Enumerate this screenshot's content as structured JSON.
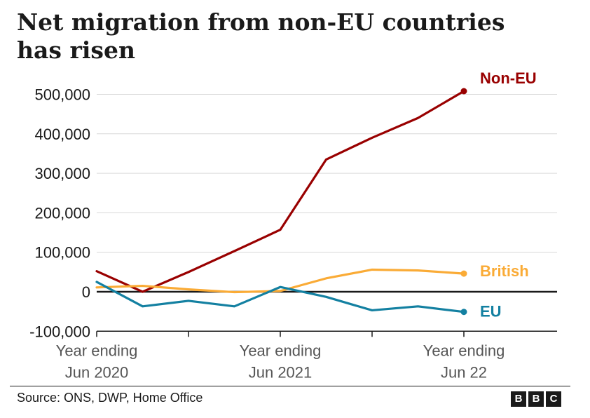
{
  "title": "Net migration from non-EU countries has risen",
  "source": "Source: ONS, DWP, Home Office",
  "logo": [
    "B",
    "B",
    "C"
  ],
  "chart_data": {
    "type": "line",
    "title": "Net migration from non-EU countries has risen",
    "ylim": [
      -100000,
      520000
    ],
    "yticks": [
      {
        "value": -100000,
        "label": "-100,000"
      },
      {
        "value": 0,
        "label": "0"
      },
      {
        "value": 100000,
        "label": "100,000"
      },
      {
        "value": 200000,
        "label": "200,000"
      },
      {
        "value": 300000,
        "label": "300,000"
      },
      {
        "value": 400000,
        "label": "400,000"
      },
      {
        "value": 500000,
        "label": "500,000"
      }
    ],
    "x": [
      0,
      1,
      2,
      3,
      4,
      5,
      6,
      7,
      8
    ],
    "xlim": [
      0,
      10
    ],
    "xticks": [
      {
        "value": 0,
        "line1": "Year ending",
        "line2": "Jun 2020"
      },
      {
        "value": 4,
        "line1": "Year ending",
        "line2": "Jun 2021"
      },
      {
        "value": 8,
        "line1": "Year ending",
        "line2": "Jun 22"
      }
    ],
    "xtick_marks": [
      0,
      2,
      4,
      6,
      8
    ],
    "grid": true,
    "series": [
      {
        "name": "Non-EU",
        "color": "#990000",
        "values": [
          52000,
          0,
          50000,
          103000,
          157000,
          335000,
          390000,
          440000,
          508000
        ]
      },
      {
        "name": "British",
        "color": "#faab36",
        "values": [
          11000,
          15000,
          6000,
          -1000,
          2000,
          34000,
          56000,
          54000,
          46000
        ]
      },
      {
        "name": "EU",
        "color": "#1380a1",
        "values": [
          25000,
          -37000,
          -23000,
          -37000,
          12000,
          -13000,
          -47000,
          -37000,
          -51000
        ]
      }
    ]
  }
}
